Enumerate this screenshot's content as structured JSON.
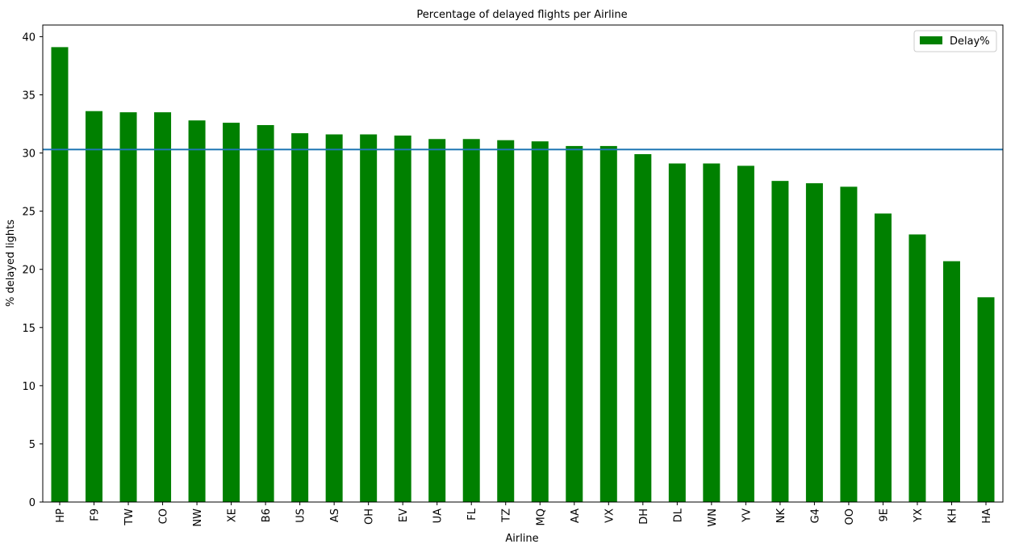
{
  "chart_data": {
    "type": "bar",
    "title": "Percentage of delayed flights per Airline",
    "xlabel": "Airline",
    "ylabel": "% delayed lights",
    "categories": [
      "HP",
      "F9",
      "TW",
      "CO",
      "NW",
      "XE",
      "B6",
      "US",
      "AS",
      "OH",
      "EV",
      "UA",
      "FL",
      "TZ",
      "MQ",
      "AA",
      "VX",
      "DH",
      "DL",
      "WN",
      "YV",
      "NK",
      "G4",
      "OO",
      "9E",
      "YX",
      "KH",
      "HA"
    ],
    "series": [
      {
        "name": "Delay%",
        "color": "#008000",
        "values": [
          39.1,
          33.6,
          33.5,
          33.5,
          32.8,
          32.6,
          32.4,
          31.7,
          31.6,
          31.6,
          31.5,
          31.2,
          31.2,
          31.1,
          31.0,
          30.6,
          30.6,
          29.9,
          29.1,
          29.1,
          28.9,
          27.6,
          27.4,
          27.1,
          24.8,
          23.0,
          20.7,
          17.6
        ]
      }
    ],
    "reference_line": {
      "value": 30.3,
      "color": "#1f77b4"
    },
    "ylim": [
      0,
      41
    ],
    "yticks": [
      0,
      5,
      10,
      15,
      20,
      25,
      30,
      35,
      40
    ],
    "grid": false,
    "legend_position": "upper right"
  }
}
